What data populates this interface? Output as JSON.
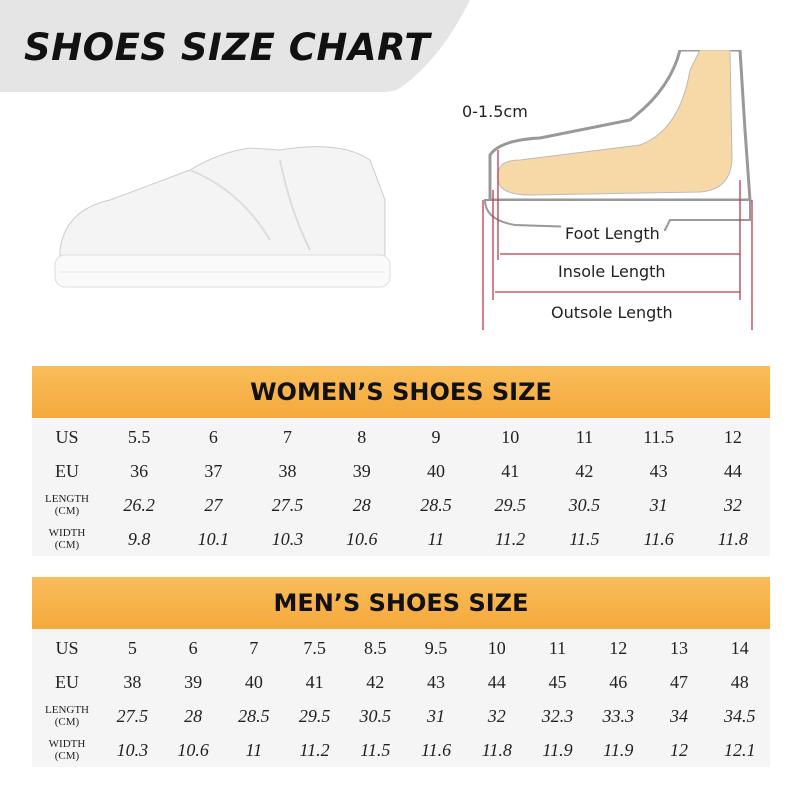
{
  "title": "SHOES SIZE CHART",
  "diagram": {
    "toe_gap": "0-1.5cm",
    "foot_length": "Foot Length",
    "insole_length": "Insole Length",
    "outsole_length": "Outsole Length"
  },
  "colors": {
    "header": "#f7b040",
    "banner": "#e5e5e5",
    "measure_line": "#c0394a",
    "foot": "#f7d9a8"
  },
  "women": {
    "title": "WOMEN’S SHOES SIZE",
    "rows": [
      {
        "label": "US",
        "values": [
          "5.5",
          "6",
          "7",
          "8",
          "9",
          "10",
          "11",
          "11.5",
          "12"
        ]
      },
      {
        "label": "EU",
        "values": [
          "36",
          "37",
          "38",
          "39",
          "40",
          "41",
          "42",
          "43",
          "44"
        ]
      },
      {
        "label": "LENGTH (CM)",
        "values": [
          "26.2",
          "27",
          "27.5",
          "28",
          "28.5",
          "29.5",
          "30.5",
          "31",
          "32"
        ]
      },
      {
        "label": "WIDTH (CM)",
        "values": [
          "9.8",
          "10.1",
          "10.3",
          "10.6",
          "11",
          "11.2",
          "11.5",
          "11.6",
          "11.8"
        ]
      }
    ]
  },
  "men": {
    "title": "MEN’S SHOES SIZE",
    "rows": [
      {
        "label": "US",
        "values": [
          "5",
          "6",
          "7",
          "7.5",
          "8.5",
          "9.5",
          "10",
          "11",
          "12",
          "13",
          "14"
        ]
      },
      {
        "label": "EU",
        "values": [
          "38",
          "39",
          "40",
          "41",
          "42",
          "43",
          "44",
          "45",
          "46",
          "47",
          "48"
        ]
      },
      {
        "label": "LENGTH (CM)",
        "values": [
          "27.5",
          "28",
          "28.5",
          "29.5",
          "30.5",
          "31",
          "32",
          "32.3",
          "33.3",
          "34",
          "34.5"
        ]
      },
      {
        "label": "WIDTH (CM)",
        "values": [
          "10.3",
          "10.6",
          "11",
          "11.2",
          "11.5",
          "11.6",
          "11.8",
          "11.9",
          "11.9",
          "12",
          "12.1"
        ]
      }
    ]
  }
}
